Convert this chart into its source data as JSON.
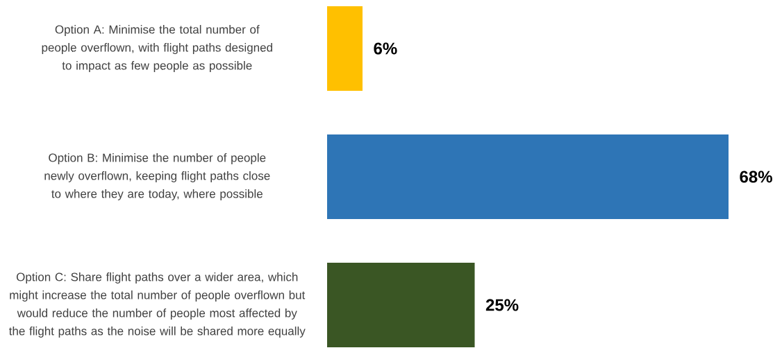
{
  "chart_data": {
    "type": "bar",
    "orientation": "horizontal",
    "categories": [
      "Option A: Minimise the total number of people overflown, with flight paths designed to impact as few people as possible",
      "Option B: Minimise the number of people newly overflown, keeping flight paths close to where they are today, where possible",
      "Option C: Share flight paths over a wider area, which might increase the total number of people overflown but would reduce the number of people most affected by the flight paths as the noise will be shared more equally"
    ],
    "values": [
      6,
      68,
      25
    ],
    "colors": [
      "#ffc000",
      "#2e75b6",
      "#3a5624"
    ],
    "value_labels": [
      "6%",
      "68%",
      "25%"
    ]
  }
}
